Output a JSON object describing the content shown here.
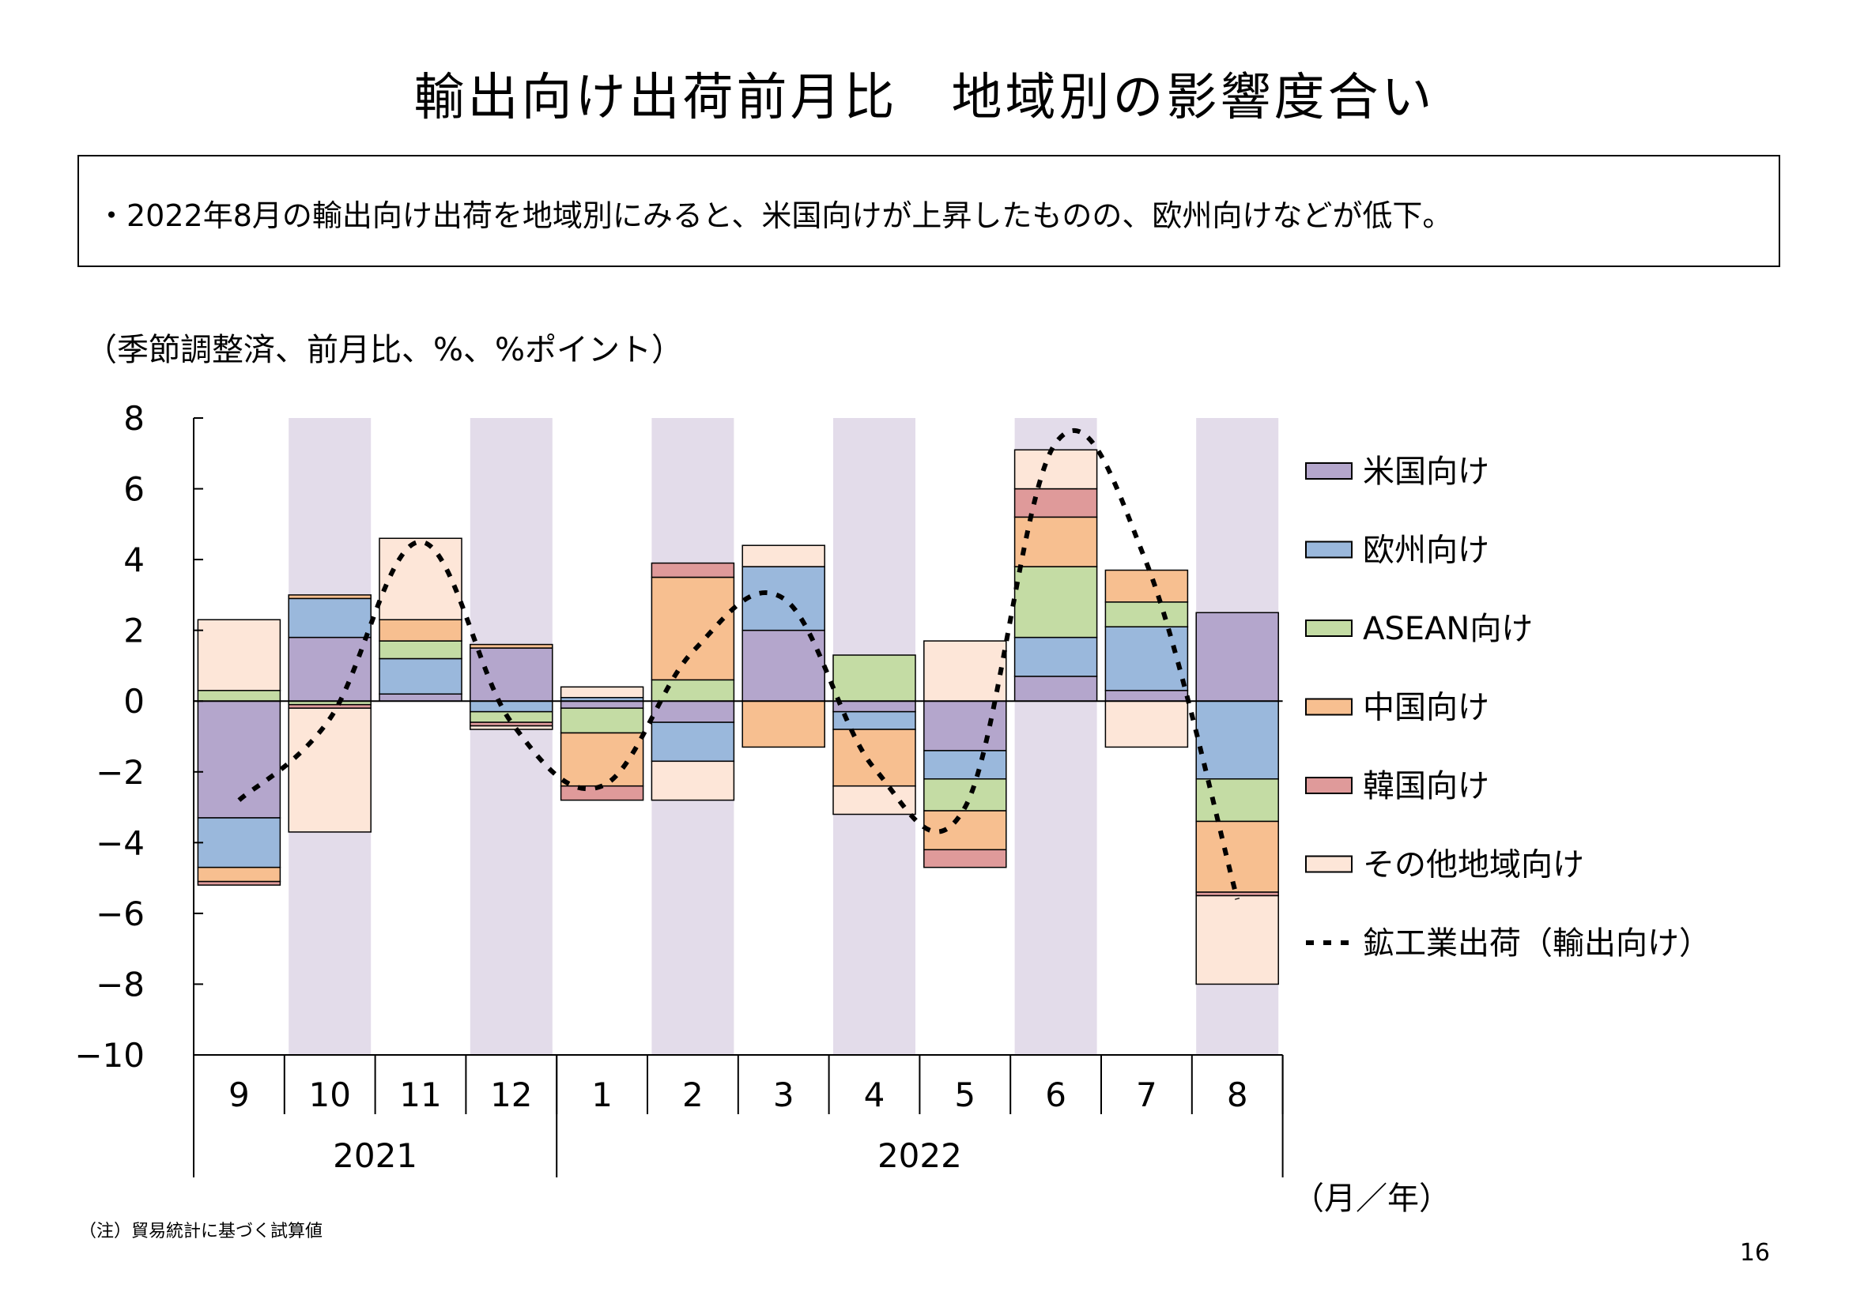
{
  "title": "輸出向け出荷前月比　地域別の影響度合い",
  "summary": "・2022年8月の輸出向け出荷を地域別にみると、米国向けが上昇したものの、欧州向けなどが低下。",
  "unit_label": "（季節調整済、前月比、%、%ポイント）",
  "note": "（注）貿易統計に基づく試算値",
  "page_number": "16",
  "colors": {
    "shade": "#e3dcea",
    "line": "#000000"
  },
  "chart_data": {
    "type": "bar",
    "stacked": true,
    "categories": [
      "9",
      "10",
      "11",
      "12",
      "1",
      "2",
      "3",
      "4",
      "5",
      "6",
      "7",
      "8"
    ],
    "year_groups": [
      {
        "label": "2021",
        "count": 4
      },
      {
        "label": "2022",
        "count": 8
      }
    ],
    "xunit": "（月／年）",
    "ylim": [
      -10,
      8
    ],
    "yticks": [
      8,
      6,
      4,
      2,
      0,
      -2,
      -4,
      -6,
      -8,
      -10
    ],
    "ytick_labels": [
      "8",
      "6",
      "4",
      "2",
      "0",
      "−2",
      "−4",
      "−6",
      "−8",
      "−10"
    ],
    "shaded_columns": [
      1,
      3,
      5,
      7,
      9,
      11
    ],
    "series": [
      {
        "name": "米国向け",
        "color": "#b4a6cc",
        "values": [
          -3.3,
          1.8,
          0.2,
          1.5,
          -0.2,
          -0.6,
          2.0,
          -0.3,
          -1.4,
          0.7,
          0.3,
          2.5
        ]
      },
      {
        "name": "欧州向け",
        "color": "#9ab8dc",
        "values": [
          -1.4,
          1.1,
          1.0,
          -0.3,
          0.1,
          -1.1,
          1.8,
          -0.5,
          -0.8,
          1.1,
          1.8,
          -2.2
        ]
      },
      {
        "name": "ASEAN向け",
        "color": "#c4dca4",
        "values": [
          0.3,
          -0.1,
          0.5,
          -0.3,
          -0.7,
          0.6,
          0.0,
          1.3,
          -0.9,
          2.0,
          0.7,
          -1.2
        ]
      },
      {
        "name": "中国向け",
        "color": "#f7bf90",
        "values": [
          -0.4,
          0.1,
          0.6,
          0.1,
          -1.5,
          2.9,
          -1.3,
          -1.6,
          -1.1,
          1.4,
          0.9,
          -2.0
        ]
      },
      {
        "name": "韓国向け",
        "color": "#df9a9a",
        "values": [
          -0.1,
          -0.1,
          0.0,
          -0.1,
          -0.4,
          0.4,
          0.0,
          0.0,
          -0.5,
          0.8,
          0.0,
          -0.1
        ]
      },
      {
        "name": "その他地域向け",
        "color": "#fde6d8",
        "values": [
          2.0,
          -3.5,
          2.3,
          -0.1,
          0.3,
          -1.1,
          0.6,
          -0.8,
          1.7,
          1.1,
          -1.3,
          -2.5
        ]
      }
    ],
    "line": {
      "name": "鉱工業出荷（輸出向け）",
      "values": [
        -2.8,
        -0.5,
        4.5,
        -0.6,
        -2.4,
        1.4,
        2.9,
        -1.9,
        -3.0,
        7.3,
        3.9,
        -5.6
      ]
    }
  }
}
